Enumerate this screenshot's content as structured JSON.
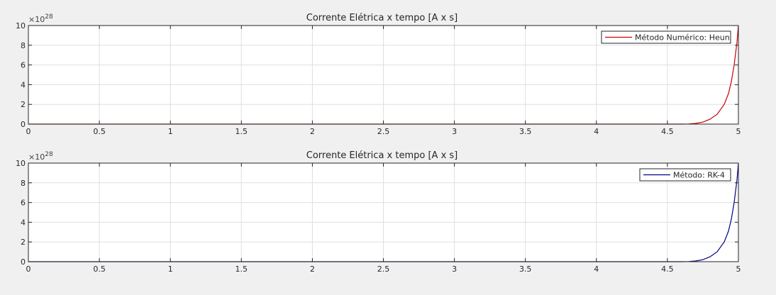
{
  "chart_data": [
    {
      "type": "line",
      "title": "Corrente Elétrica x tempo [A x s]",
      "xlabel": "",
      "ylabel": "",
      "xlim": [
        0,
        5
      ],
      "ylim": [
        0,
        10
      ],
      "y_multiplier_exponent": "28",
      "y_multiplier_base": "×10",
      "x_ticks": [
        "0",
        "0.5",
        "1",
        "1.5",
        "2",
        "2.5",
        "3",
        "3.5",
        "4",
        "4.5",
        "5"
      ],
      "y_ticks": [
        "0",
        "2",
        "4",
        "6",
        "8",
        "10"
      ],
      "grid": true,
      "legend_position": "top-right",
      "series": [
        {
          "name": "Método Numérico: Heun",
          "color": "#cc0000",
          "x": [
            0,
            4.5,
            4.6,
            4.65,
            4.7,
            4.75,
            4.8,
            4.85,
            4.9,
            4.93,
            4.95,
            4.97,
            4.99,
            5.0
          ],
          "y": [
            0,
            0,
            0.003,
            0.015,
            0.07,
            0.2,
            0.5,
            1.0,
            2.0,
            3.1,
            4.3,
            6.0,
            8.3,
            10.0
          ]
        }
      ]
    },
    {
      "type": "line",
      "title": "Corrente Elétrica x tempo [A x s]",
      "xlabel": "",
      "ylabel": "",
      "xlim": [
        0,
        5
      ],
      "ylim": [
        0,
        10
      ],
      "y_multiplier_exponent": "28",
      "y_multiplier_base": "×10",
      "x_ticks": [
        "0",
        "0.5",
        "1",
        "1.5",
        "2",
        "2.5",
        "3",
        "3.5",
        "4",
        "4.5",
        "5"
      ],
      "y_ticks": [
        "0",
        "2",
        "4",
        "6",
        "8",
        "10"
      ],
      "grid": true,
      "legend_position": "top-right",
      "series": [
        {
          "name": "Método: RK-4",
          "color": "#00008b",
          "x": [
            0,
            4.5,
            4.6,
            4.65,
            4.7,
            4.75,
            4.8,
            4.85,
            4.9,
            4.93,
            4.95,
            4.97,
            4.99,
            5.0
          ],
          "y": [
            0,
            0,
            0.003,
            0.015,
            0.07,
            0.2,
            0.5,
            1.0,
            2.0,
            3.1,
            4.3,
            6.0,
            8.3,
            10.0
          ]
        }
      ]
    }
  ]
}
